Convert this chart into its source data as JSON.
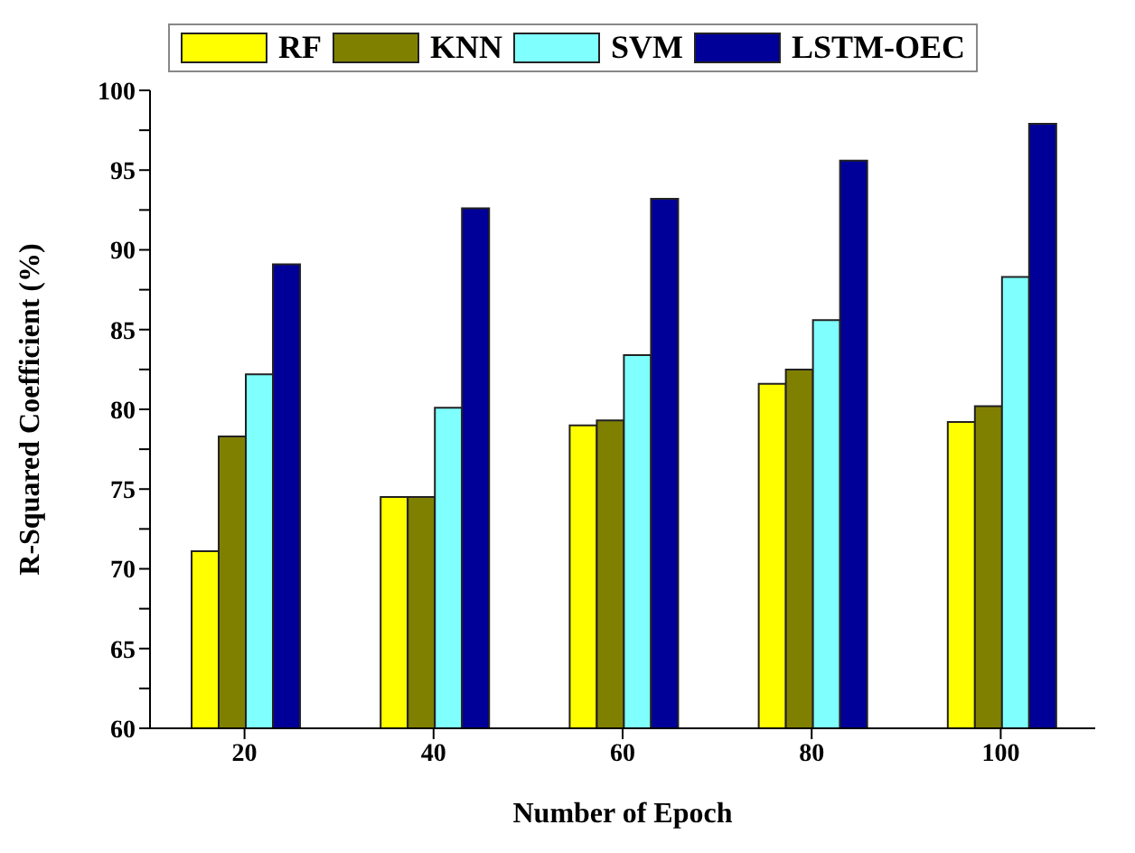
{
  "chart_data": {
    "type": "bar",
    "xlabel": "Number of Epoch",
    "ylabel": "R-Squared Coefficient (%)",
    "categories": [
      "20",
      "40",
      "60",
      "80",
      "100"
    ],
    "series": [
      {
        "name": "RF",
        "color": "#ffff00",
        "values": [
          71.1,
          74.5,
          79.0,
          81.6,
          79.2
        ]
      },
      {
        "name": "KNN",
        "color": "#808000",
        "values": [
          78.3,
          74.5,
          79.3,
          82.5,
          80.2
        ]
      },
      {
        "name": "SVM",
        "color": "#80ffff",
        "values": [
          82.2,
          80.1,
          83.4,
          85.6,
          88.3
        ]
      },
      {
        "name": "LSTM-OEC",
        "color": "#000099",
        "values": [
          89.1,
          92.6,
          93.2,
          95.6,
          97.9
        ]
      }
    ],
    "ylim": [
      60,
      100
    ],
    "yticks": [
      60,
      {
        "value": 62.5,
        "label": null
      },
      65,
      {
        "value": 67.5,
        "label": null
      },
      70,
      {
        "value": 72.5,
        "label": null
      },
      75,
      {
        "value": 77.5,
        "label": null
      },
      80,
      {
        "value": 82.5,
        "label": null
      },
      85,
      {
        "value": 87.5,
        "label": null
      },
      90,
      {
        "value": 92.5,
        "label": null
      },
      95,
      {
        "value": 97.5,
        "label": null
      },
      100
    ],
    "grid": false,
    "legend": "top"
  }
}
